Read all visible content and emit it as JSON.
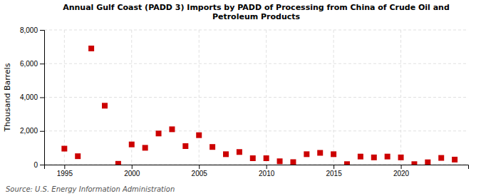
{
  "chart_data": {
    "type": "scatter",
    "title": "Annual Gulf Coast (PADD 3) Imports by PADD of Processing from China of Crude Oil and\nPetroleum Products",
    "ylabel": "Thousand Barrels",
    "annotations": [
      "Source: U.S. Energy Information Administration"
    ],
    "x": [
      1995,
      1996,
      1997,
      1998,
      1999,
      2000,
      2001,
      2002,
      2003,
      2004,
      2005,
      2006,
      2007,
      2008,
      2009,
      2010,
      2011,
      2012,
      2013,
      2014,
      2015,
      2016,
      2017,
      2018,
      2019,
      2020,
      2021,
      2022,
      2023,
      2024
    ],
    "values": [
      950,
      500,
      6900,
      3500,
      50,
      1200,
      1000,
      1850,
      2100,
      1100,
      1750,
      1050,
      620,
      750,
      380,
      380,
      200,
      150,
      620,
      700,
      620,
      30,
      480,
      430,
      480,
      430,
      30,
      140,
      400,
      300
    ],
    "color": "#cc0000",
    "marker": "square",
    "xlim": [
      1993.5,
      2025
    ],
    "xticks": [
      1995,
      2000,
      2005,
      2010,
      2015,
      2020
    ],
    "ylim": [
      0,
      8000
    ],
    "yticks": [
      0,
      {
        "value": 2000,
        "label": "2,000"
      },
      {
        "value": 4000,
        "label": "4,000"
      },
      {
        "value": 6000,
        "label": "6,000"
      },
      {
        "value": 8000,
        "label": "8,000"
      }
    ],
    "grid": true
  }
}
